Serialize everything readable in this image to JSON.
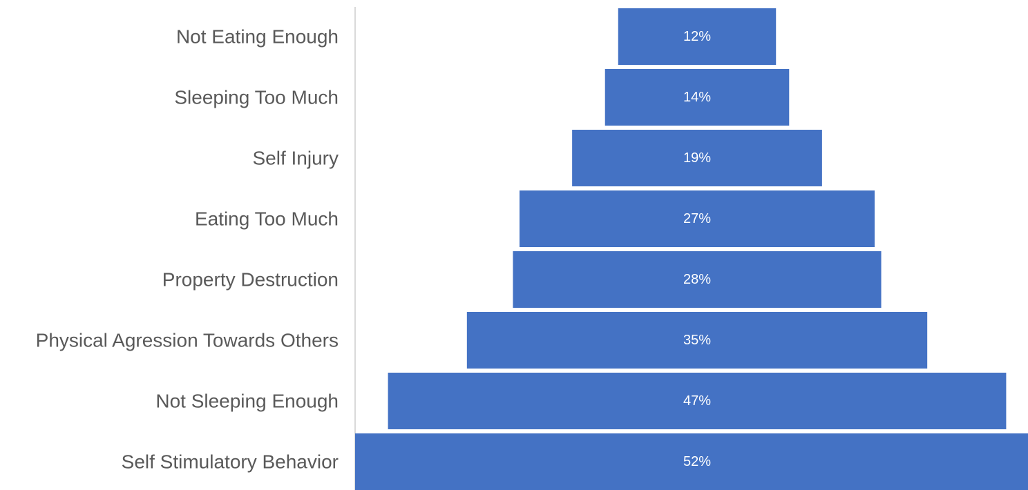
{
  "chart_data": {
    "type": "bar",
    "orientation": "horizontal-centered-funnel",
    "categories": [
      "Not Eating Enough",
      "Sleeping Too Much",
      "Self Injury",
      "Eating Too Much",
      "Property Destruction",
      "Physical Agression Towards Others",
      "Not Sleeping Enough",
      "Self Stimulatory Behavior"
    ],
    "values": [
      12,
      14,
      19,
      27,
      28,
      35,
      47,
      52
    ],
    "data_labels": [
      "12%",
      "14%",
      "19%",
      "27%",
      "28%",
      "35%",
      "47%",
      "52%"
    ],
    "title": "",
    "xlabel": "",
    "ylabel": "",
    "grid": false,
    "legend": "none",
    "colors": {
      "bar": "#4472C4",
      "category_text": "#595959",
      "data_label_text": "#FFFFFF",
      "axis_line": "#D9D9D9"
    }
  }
}
